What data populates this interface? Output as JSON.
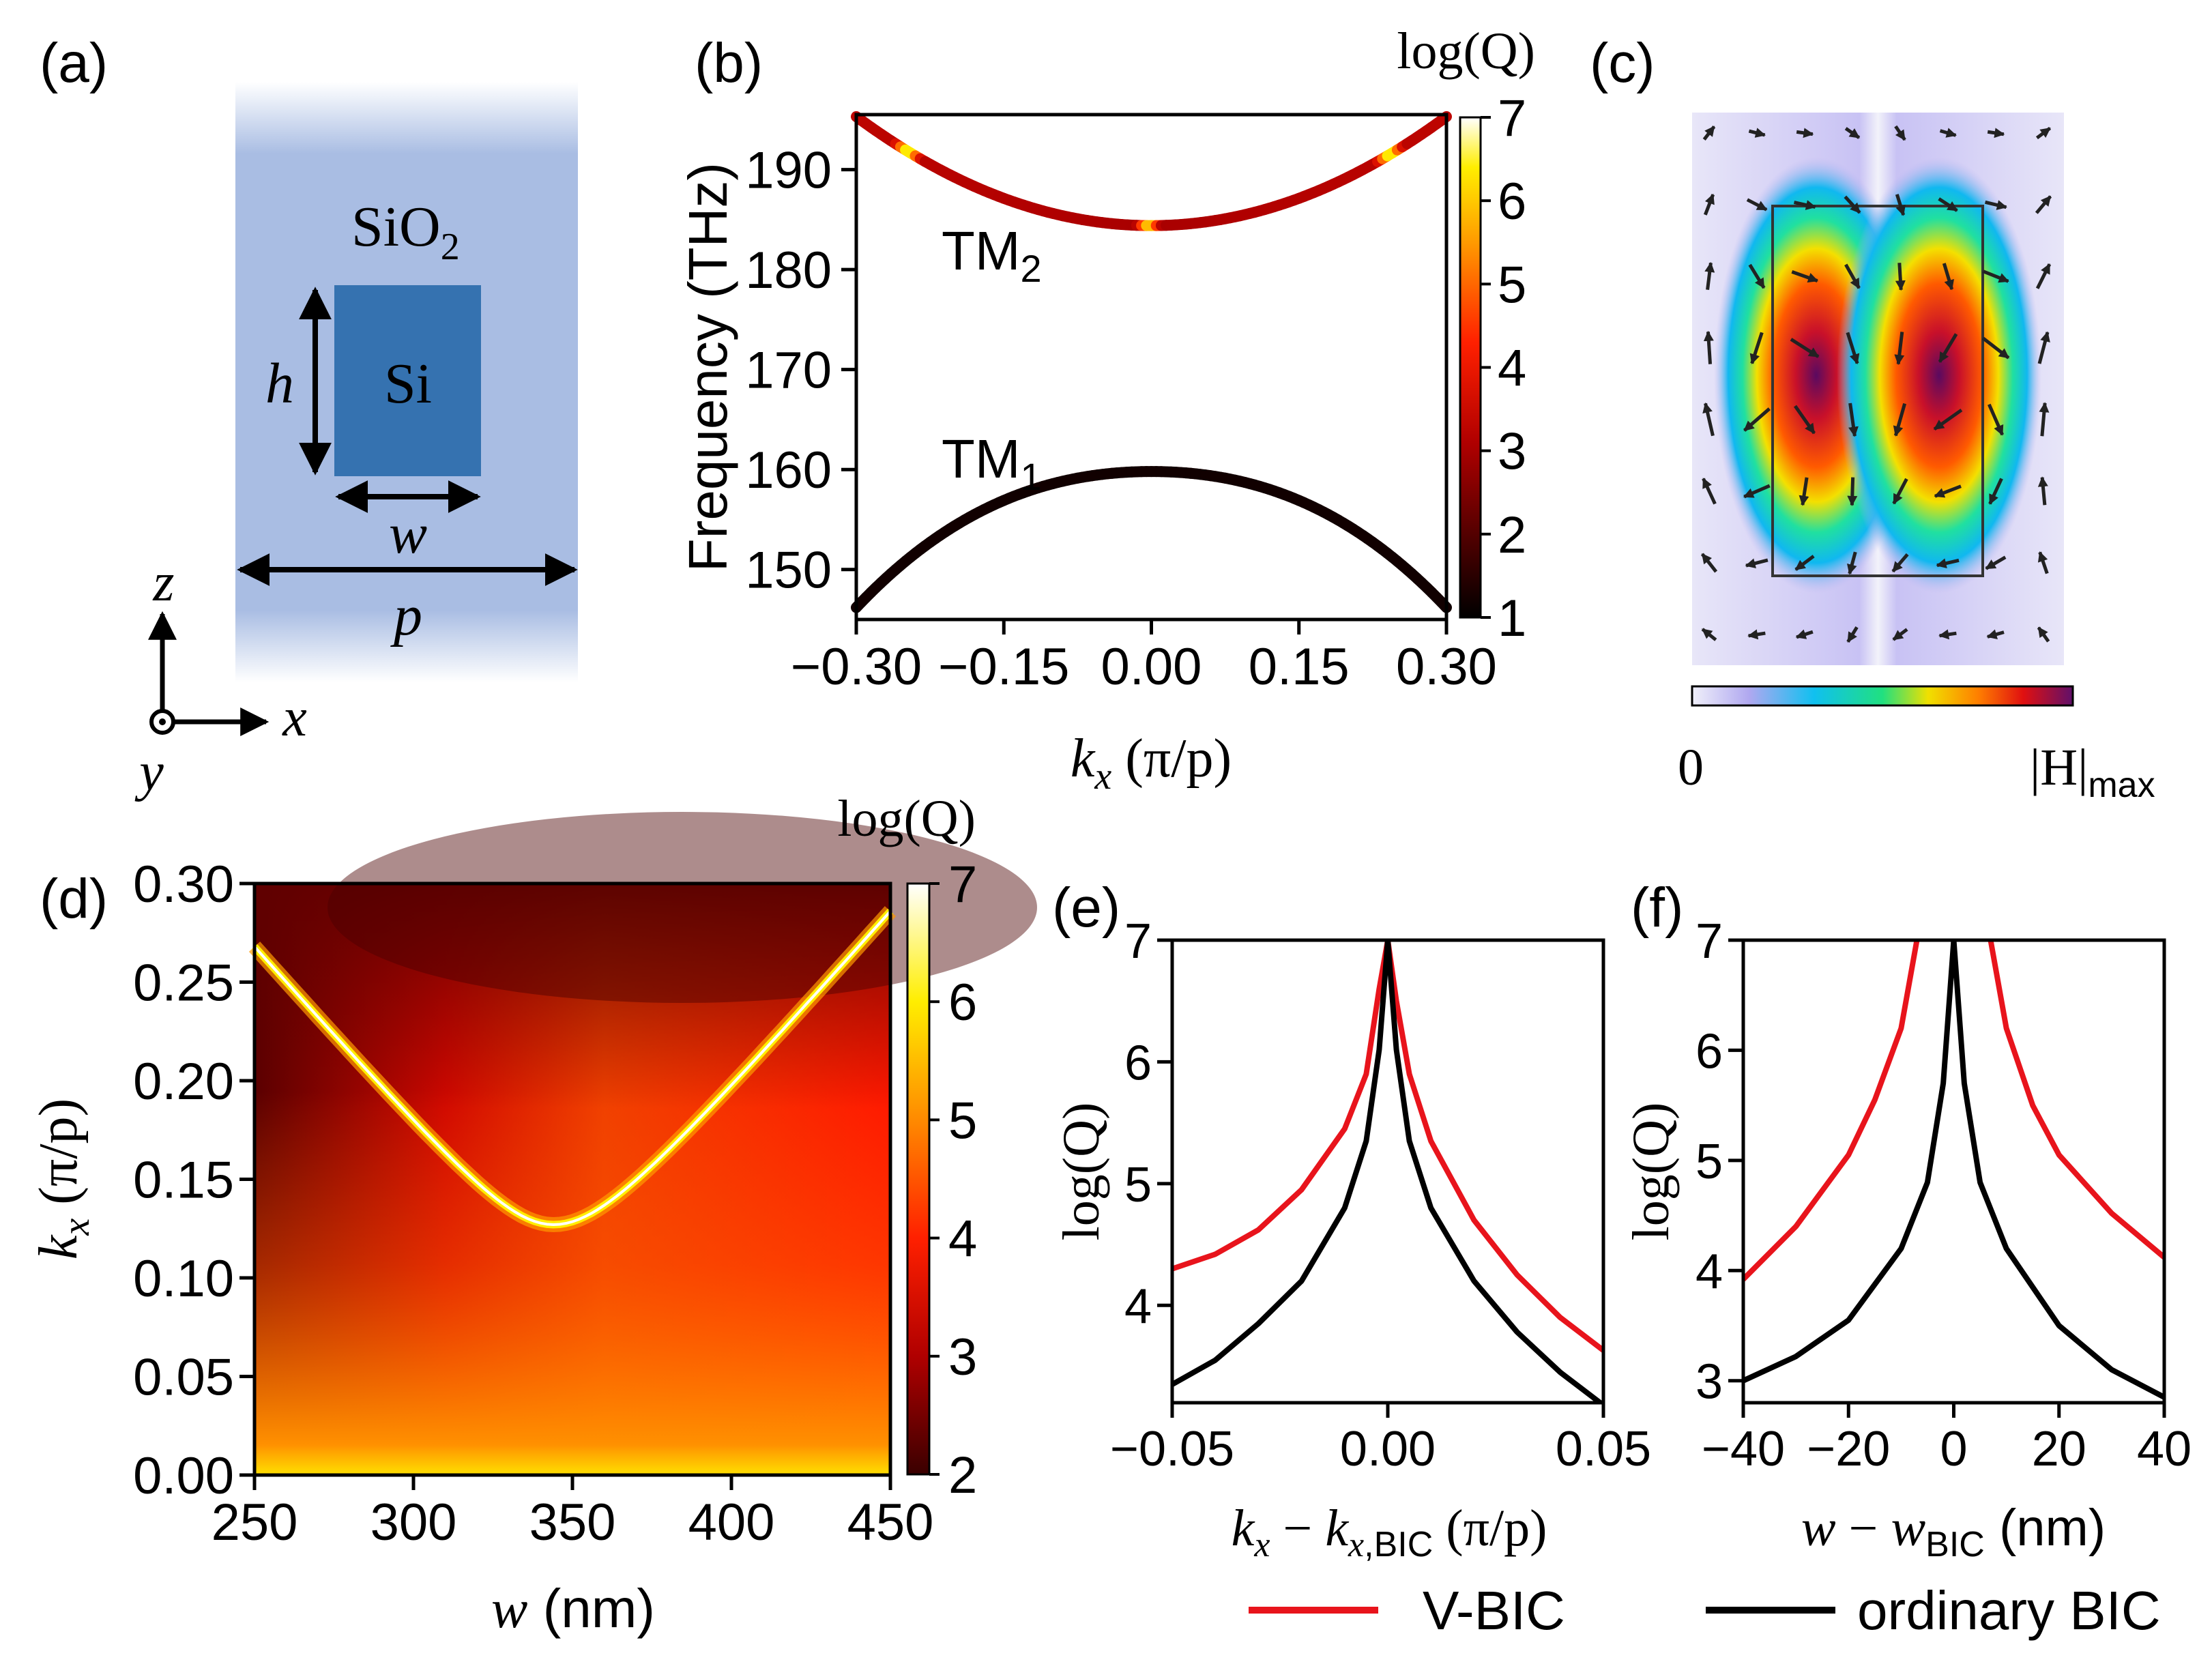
{
  "panel_labels": {
    "a": "(a)",
    "b": "(b)",
    "c": "(c)",
    "d": "(d)",
    "e": "(e)",
    "f": "(f)"
  },
  "colors": {
    "background": "#ffffff",
    "sio2": "#a9bde3",
    "si": "#3572b0",
    "vbic": "#e8141c",
    "ordinary": "#000000"
  },
  "schematic": {
    "cladding_label": "SiO",
    "cladding_sub": "2",
    "core_label": "Si",
    "height_label": "h",
    "width_label": "w",
    "period_label": "p",
    "axis_z": "z",
    "axis_x": "x",
    "axis_y": "y"
  },
  "field_map": {
    "cbar_min_label": "0",
    "cbar_max_label": "|H|",
    "cbar_max_sub": "max"
  },
  "legend": {
    "vbic": "V-BIC",
    "ordinary": "ordinary BIC"
  },
  "chart_data": [
    {
      "id": "b",
      "type": "line",
      "xlabel_main": "k",
      "xlabel_sub": "x",
      "xlabel_unit": " (π/p)",
      "ylabel": "Frequency (THz)",
      "xlim": [
        -0.3,
        0.3
      ],
      "ylim": [
        145,
        195.5
      ],
      "xticks": [
        -0.3,
        -0.15,
        0,
        0.15,
        0.3
      ],
      "xtick_labels": [
        "−0.30",
        "−0.15",
        "0.00",
        "0.15",
        "0.30"
      ],
      "yticks": [
        150,
        160,
        170,
        180,
        190
      ],
      "ytick_labels": [
        "150",
        "160",
        "170",
        "180",
        "190"
      ],
      "colorbar": {
        "title": "log(Q)",
        "min": 1,
        "max": 7,
        "ticks": [
          "1",
          "2",
          "3",
          "4",
          "5",
          "6",
          "7"
        ]
      },
      "bands": [
        {
          "name": "TM",
          "sub": "2",
          "f0": 184.4,
          "f_edge": 195.3,
          "logq_base": 3.0,
          "logq_peaks": [
            [
              0,
              6.5
            ],
            [
              -0.245,
              7
            ],
            [
              0.245,
              7
            ]
          ]
        },
        {
          "name": "TM",
          "sub": "1",
          "f0": 159.8,
          "f_edge": 146.2,
          "logq_base": 1.2,
          "logq_peaks": []
        }
      ]
    },
    {
      "id": "d",
      "type": "heatmap",
      "xlabel": "w",
      "xlabel_unit": " (nm)",
      "ylabel_main": "k",
      "ylabel_sub": "x",
      "ylabel_unit": " (π/p)",
      "xlim": [
        250,
        450
      ],
      "ylim": [
        0,
        0.3
      ],
      "xticks": [
        250,
        300,
        350,
        400,
        450
      ],
      "xtick_labels": [
        "250",
        "300",
        "350",
        "400",
        "450"
      ],
      "yticks": [
        0,
        0.05,
        0.1,
        0.15,
        0.2,
        0.25,
        0.3
      ],
      "ytick_labels": [
        "0.00",
        "0.05",
        "0.10",
        "0.15",
        "0.20",
        "0.25",
        "0.30"
      ],
      "colorbar": {
        "title": "log(Q)",
        "min": 2,
        "max": 7,
        "ticks": [
          "2",
          "3",
          "4",
          "5",
          "6",
          "7"
        ]
      },
      "bic_curve": {
        "w0": 344,
        "k_min": 0.127,
        "asymptote_slope": 0.00195,
        "k_at_250": 0.268,
        "k_at_450": 0.286
      }
    },
    {
      "id": "e",
      "type": "line",
      "xlabel": "k_x − k_x,BIC (π/p)",
      "ylabel": "log(Q)",
      "xlim": [
        -0.05,
        0.05
      ],
      "ylim": [
        3.2,
        7
      ],
      "xticks": [
        -0.05,
        0,
        0.05
      ],
      "xtick_labels": [
        "−0.05",
        "0.00",
        "0.05"
      ],
      "yticks": [
        4,
        5,
        6,
        7
      ],
      "ytick_labels": [
        "4",
        "5",
        "6",
        "7"
      ],
      "series": [
        {
          "name": "V-BIC",
          "x": [
            -0.05,
            -0.04,
            -0.03,
            -0.02,
            -0.01,
            -0.005,
            -0.002,
            0,
            0.002,
            0.005,
            0.01,
            0.02,
            0.03,
            0.04,
            0.05
          ],
          "y": [
            4.3,
            4.42,
            4.62,
            4.95,
            5.45,
            5.9,
            6.6,
            7.0,
            6.5,
            5.9,
            5.35,
            4.7,
            4.25,
            3.9,
            3.63
          ]
        },
        {
          "name": "ordinary BIC",
          "x": [
            -0.05,
            -0.04,
            -0.03,
            -0.02,
            -0.01,
            -0.005,
            -0.002,
            0,
            0.002,
            0.005,
            0.01,
            0.02,
            0.03,
            0.04,
            0.05
          ],
          "y": [
            3.35,
            3.55,
            3.85,
            4.2,
            4.8,
            5.35,
            6.1,
            7.0,
            6.1,
            5.35,
            4.8,
            4.2,
            3.78,
            3.45,
            3.18
          ]
        }
      ]
    },
    {
      "id": "f",
      "type": "line",
      "xlabel": "w − w_BIC (nm)",
      "ylabel": "log(Q)",
      "xlim": [
        -40,
        40
      ],
      "ylim": [
        2.8,
        7
      ],
      "xticks": [
        -40,
        -20,
        0,
        20,
        40
      ],
      "xtick_labels": [
        "−40",
        "−20",
        "0",
        "20",
        "40"
      ],
      "yticks": [
        3,
        4,
        5,
        6,
        7
      ],
      "ytick_labels": [
        "3",
        "4",
        "5",
        "6",
        "7"
      ],
      "series": [
        {
          "name": "V-BIC",
          "x": [
            -40,
            -30,
            -20,
            -15,
            -10,
            -7
          ],
          "y": [
            3.92,
            4.4,
            5.05,
            5.55,
            6.2,
            7.0
          ],
          "x2": [
            7,
            10,
            15,
            20,
            30,
            40
          ],
          "y2": [
            7.0,
            6.2,
            5.5,
            5.05,
            4.52,
            4.12
          ]
        },
        {
          "name": "ordinary BIC",
          "x": [
            -40,
            -30,
            -20,
            -10,
            -5,
            -2,
            0,
            2,
            5,
            10,
            20,
            30,
            40
          ],
          "y": [
            3.0,
            3.22,
            3.55,
            4.2,
            4.8,
            5.7,
            7.0,
            5.7,
            4.8,
            4.2,
            3.5,
            3.1,
            2.85
          ]
        }
      ]
    }
  ]
}
